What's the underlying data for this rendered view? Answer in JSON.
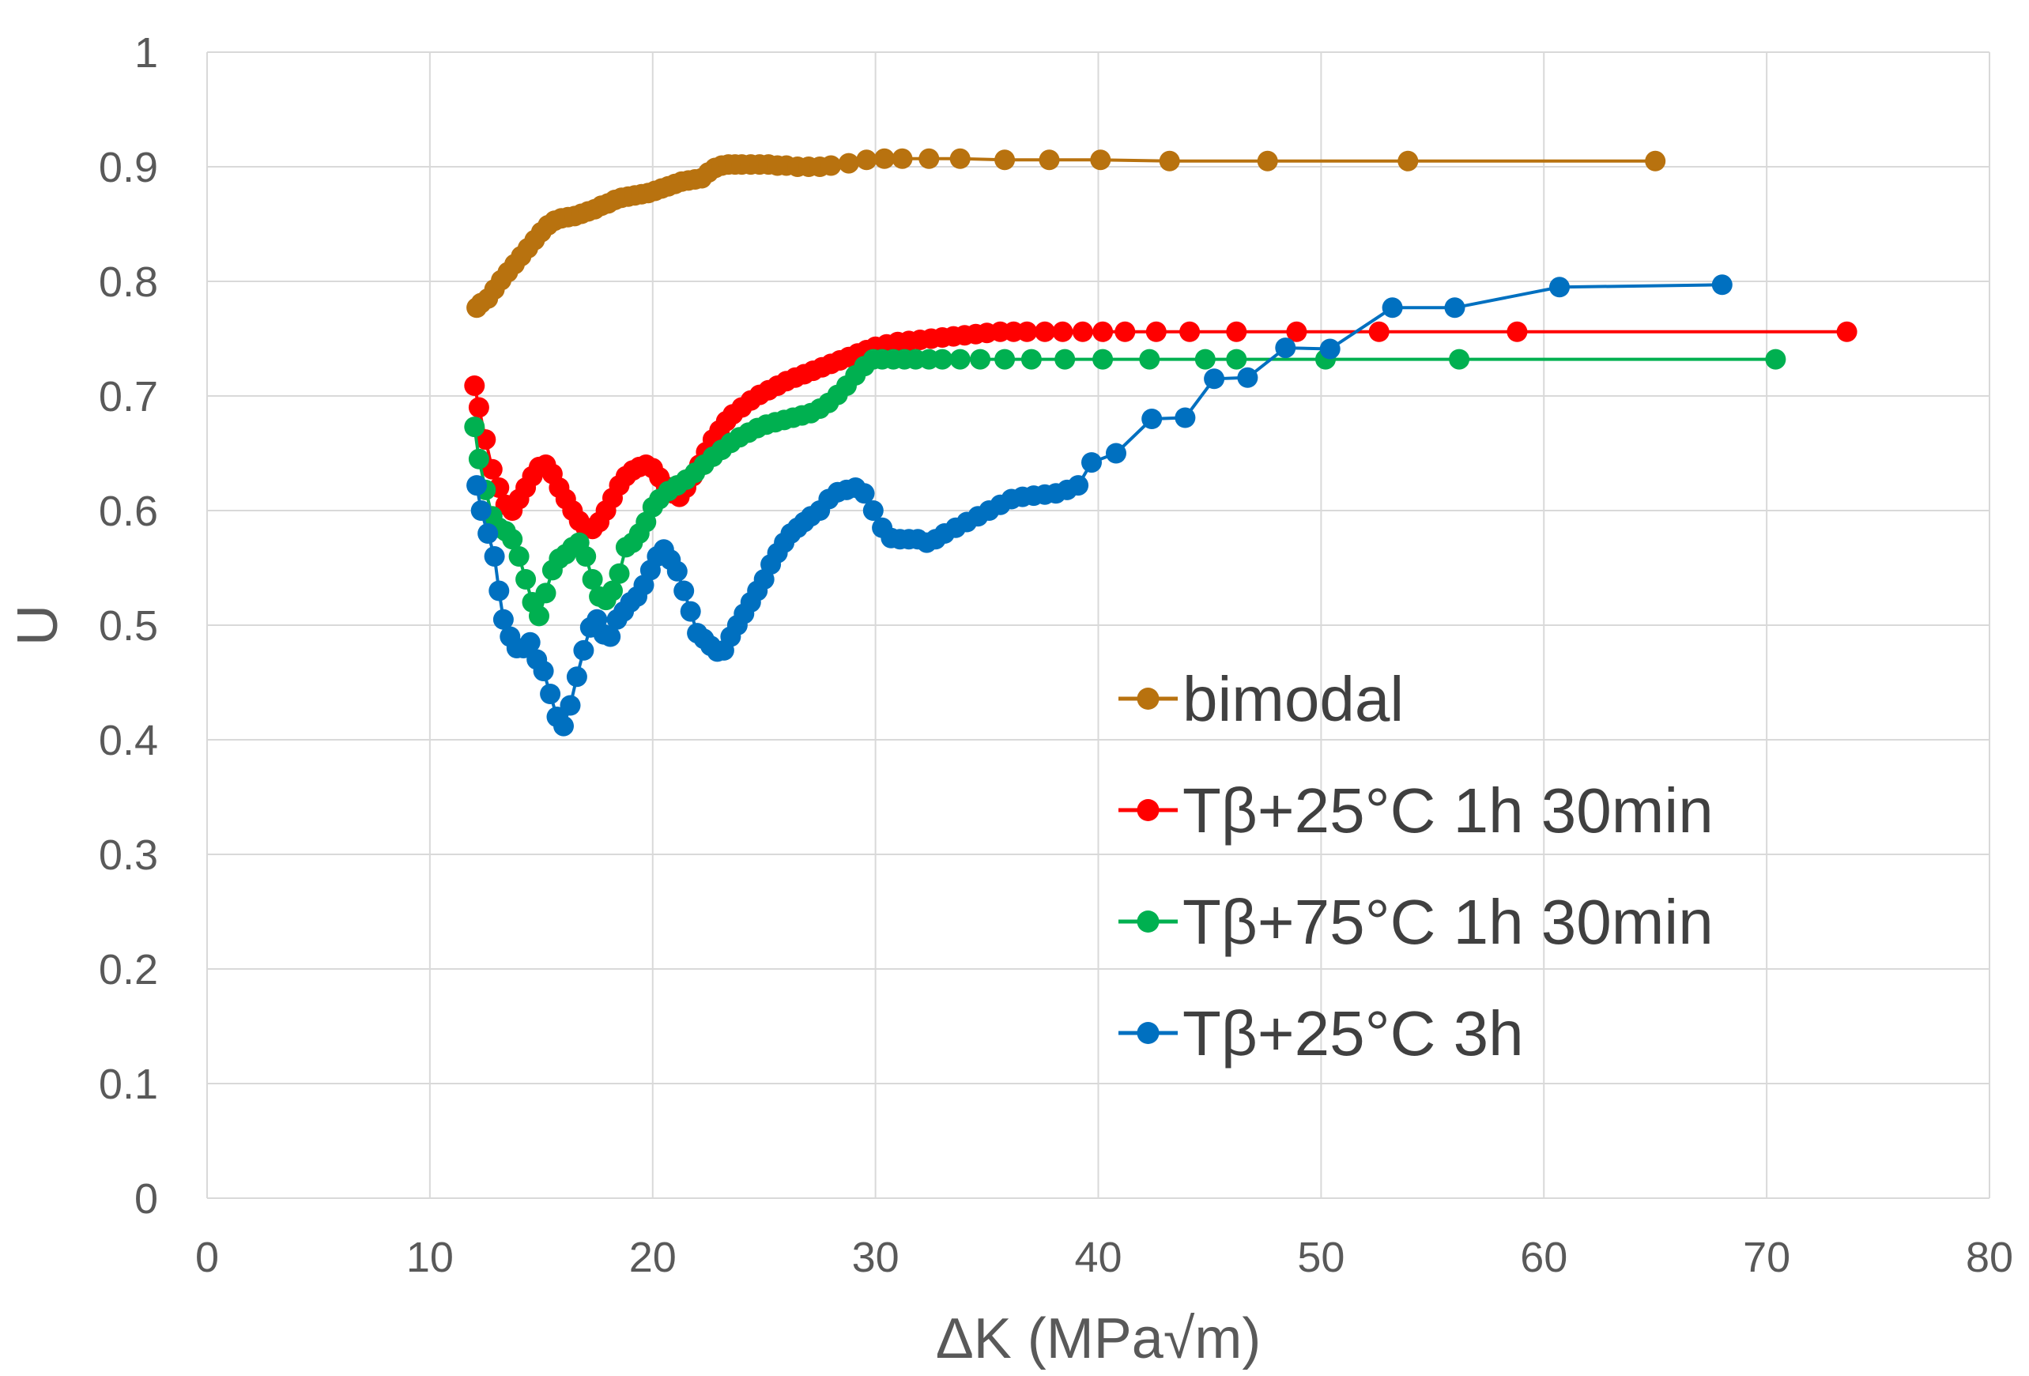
{
  "chart_data": {
    "type": "line",
    "title": "",
    "xlabel": "ΔK (MPa√m)",
    "ylabel": "U",
    "xlim": [
      0,
      80
    ],
    "ylim": [
      0,
      1
    ],
    "xticks": [
      0,
      10,
      20,
      30,
      40,
      50,
      60,
      70,
      80
    ],
    "xtick_labels": [
      "0",
      "10",
      "20",
      "30",
      "40",
      "50",
      "60",
      "70",
      "80"
    ],
    "yticks": [
      0,
      0.1,
      0.2,
      0.3,
      0.4,
      0.5,
      0.6,
      0.7,
      0.8,
      0.9,
      1
    ],
    "ytick_labels": [
      "0",
      "0.1",
      "0.2",
      "0.3",
      "0.4",
      "0.5",
      "0.6",
      "0.7",
      "0.8",
      "0.9",
      "1"
    ],
    "grid": true,
    "legend_position": "lower-right",
    "series": [
      {
        "name": "bimodal",
        "color": "#b8720f",
        "marker": "circle",
        "x": [
          12.1,
          12.3,
          12.6,
          12.9,
          13.2,
          13.5,
          13.8,
          14.1,
          14.4,
          14.7,
          15.0,
          15.3,
          15.6,
          15.9,
          16.2,
          16.5,
          16.8,
          17.1,
          17.4,
          17.7,
          18.0,
          18.3,
          18.6,
          18.9,
          19.2,
          19.5,
          19.8,
          20.1,
          20.4,
          20.7,
          21.0,
          21.3,
          21.6,
          21.9,
          22.2,
          22.5,
          22.8,
          23.1,
          23.4,
          23.7,
          24.0,
          24.4,
          24.8,
          25.2,
          25.6,
          26.0,
          26.5,
          27.0,
          27.5,
          28.0,
          28.8,
          29.6,
          30.4,
          31.2,
          32.4,
          33.8,
          35.8,
          37.8,
          40.1,
          43.2,
          47.6,
          53.9,
          65.0
        ],
        "y": [
          0.777,
          0.781,
          0.785,
          0.793,
          0.801,
          0.808,
          0.815,
          0.822,
          0.829,
          0.836,
          0.843,
          0.849,
          0.853,
          0.855,
          0.856,
          0.857,
          0.859,
          0.861,
          0.863,
          0.866,
          0.868,
          0.871,
          0.873,
          0.874,
          0.875,
          0.876,
          0.877,
          0.879,
          0.881,
          0.883,
          0.885,
          0.887,
          0.888,
          0.889,
          0.89,
          0.895,
          0.899,
          0.901,
          0.902,
          0.902,
          0.902,
          0.902,
          0.902,
          0.902,
          0.901,
          0.901,
          0.9,
          0.9,
          0.9,
          0.901,
          0.903,
          0.906,
          0.907,
          0.907,
          0.907,
          0.907,
          0.906,
          0.906,
          0.906,
          0.905,
          0.905,
          0.905,
          0.905
        ]
      },
      {
        "name": "Tβ+25°C 1h 30min",
        "color": "#ff0000",
        "marker": "circle",
        "x": [
          12.0,
          12.2,
          12.5,
          12.8,
          13.1,
          13.4,
          13.7,
          14.0,
          14.3,
          14.6,
          14.9,
          15.2,
          15.5,
          15.8,
          16.1,
          16.4,
          16.7,
          17.0,
          17.3,
          17.6,
          17.9,
          18.2,
          18.5,
          18.8,
          19.1,
          19.4,
          19.7,
          20.0,
          20.3,
          20.6,
          20.9,
          21.2,
          21.5,
          21.8,
          22.1,
          22.4,
          22.7,
          23.0,
          23.3,
          23.6,
          24.0,
          24.4,
          24.8,
          25.2,
          25.6,
          26.0,
          26.4,
          26.8,
          27.2,
          27.6,
          28.0,
          28.4,
          28.8,
          29.2,
          29.6,
          30.0,
          30.5,
          31.0,
          31.5,
          32.0,
          32.5,
          33.0,
          33.5,
          34.0,
          34.5,
          35.0,
          35.6,
          36.2,
          36.8,
          37.6,
          38.4,
          39.3,
          40.2,
          41.2,
          42.6,
          44.1,
          46.2,
          48.9,
          52.6,
          58.8,
          73.6
        ],
        "y": [
          0.709,
          0.69,
          0.662,
          0.636,
          0.62,
          0.605,
          0.6,
          0.61,
          0.62,
          0.63,
          0.638,
          0.64,
          0.632,
          0.62,
          0.61,
          0.6,
          0.591,
          0.585,
          0.584,
          0.59,
          0.6,
          0.611,
          0.622,
          0.63,
          0.635,
          0.638,
          0.64,
          0.637,
          0.629,
          0.621,
          0.615,
          0.612,
          0.62,
          0.63,
          0.64,
          0.651,
          0.662,
          0.67,
          0.678,
          0.684,
          0.69,
          0.696,
          0.701,
          0.705,
          0.709,
          0.713,
          0.716,
          0.719,
          0.722,
          0.725,
          0.728,
          0.731,
          0.734,
          0.737,
          0.74,
          0.743,
          0.745,
          0.747,
          0.748,
          0.749,
          0.75,
          0.751,
          0.752,
          0.753,
          0.754,
          0.755,
          0.756,
          0.756,
          0.756,
          0.756,
          0.756,
          0.756,
          0.756,
          0.756,
          0.756,
          0.756,
          0.756,
          0.756,
          0.756,
          0.756,
          0.756
        ]
      },
      {
        "name": "Tβ+75°C 1h 30min",
        "color": "#00b050",
        "marker": "circle",
        "x": [
          12.0,
          12.2,
          12.5,
          12.8,
          13.1,
          13.4,
          13.7,
          14.0,
          14.3,
          14.6,
          14.9,
          15.2,
          15.5,
          15.8,
          16.1,
          16.4,
          16.7,
          17.0,
          17.3,
          17.6,
          17.9,
          18.2,
          18.5,
          18.8,
          19.1,
          19.4,
          19.7,
          20.0,
          20.3,
          20.7,
          21.1,
          21.5,
          21.9,
          22.3,
          22.7,
          23.1,
          23.5,
          23.9,
          24.3,
          24.7,
          25.1,
          25.5,
          25.9,
          26.3,
          26.7,
          27.1,
          27.5,
          27.9,
          28.3,
          28.7,
          29.1,
          29.5,
          29.9,
          30.3,
          30.8,
          31.3,
          31.8,
          32.4,
          33.0,
          33.8,
          34.7,
          35.8,
          37.0,
          38.5,
          40.2,
          42.3,
          44.8,
          46.2,
          50.2,
          56.2,
          70.4
        ],
        "y": [
          0.673,
          0.645,
          0.618,
          0.595,
          0.585,
          0.582,
          0.575,
          0.56,
          0.54,
          0.52,
          0.508,
          0.528,
          0.548,
          0.558,
          0.562,
          0.568,
          0.572,
          0.56,
          0.54,
          0.525,
          0.522,
          0.53,
          0.545,
          0.568,
          0.572,
          0.58,
          0.59,
          0.603,
          0.61,
          0.617,
          0.622,
          0.627,
          0.633,
          0.64,
          0.647,
          0.653,
          0.659,
          0.664,
          0.668,
          0.672,
          0.675,
          0.677,
          0.679,
          0.681,
          0.683,
          0.685,
          0.689,
          0.694,
          0.701,
          0.709,
          0.718,
          0.726,
          0.732,
          0.732,
          0.732,
          0.732,
          0.732,
          0.732,
          0.732,
          0.732,
          0.732,
          0.732,
          0.732,
          0.732,
          0.732,
          0.732,
          0.732,
          0.732,
          0.732,
          0.732,
          0.732
        ]
      },
      {
        "name": "Tβ+25°C 3h",
        "color": "#0070c0",
        "marker": "circle",
        "x": [
          12.1,
          12.3,
          12.6,
          12.9,
          13.1,
          13.3,
          13.6,
          13.9,
          14.2,
          14.5,
          14.8,
          15.1,
          15.4,
          15.7,
          16.0,
          16.3,
          16.6,
          16.9,
          17.2,
          17.5,
          17.8,
          18.1,
          18.4,
          18.7,
          19.0,
          19.3,
          19.6,
          19.9,
          20.2,
          20.5,
          20.8,
          21.1,
          21.4,
          21.7,
          22.0,
          22.3,
          22.6,
          22.9,
          23.2,
          23.5,
          23.8,
          24.1,
          24.4,
          24.7,
          25.0,
          25.3,
          25.6,
          25.9,
          26.2,
          26.5,
          26.8,
          27.1,
          27.5,
          27.9,
          28.3,
          28.7,
          29.1,
          29.5,
          29.9,
          30.3,
          30.7,
          31.1,
          31.5,
          31.9,
          32.3,
          32.7,
          33.1,
          33.6,
          34.1,
          34.6,
          35.1,
          35.6,
          36.1,
          36.6,
          37.1,
          37.6,
          38.1,
          38.6,
          39.1,
          39.7,
          40.8,
          42.4,
          43.9,
          45.2,
          46.7,
          48.4,
          50.4,
          53.2,
          56.0,
          60.7,
          68.0
        ],
        "y": [
          0.622,
          0.6,
          0.58,
          0.56,
          0.53,
          0.505,
          0.49,
          0.48,
          0.48,
          0.485,
          0.47,
          0.46,
          0.44,
          0.42,
          0.412,
          0.43,
          0.455,
          0.478,
          0.498,
          0.505,
          0.492,
          0.49,
          0.505,
          0.512,
          0.52,
          0.525,
          0.535,
          0.548,
          0.56,
          0.566,
          0.557,
          0.547,
          0.53,
          0.512,
          0.493,
          0.488,
          0.482,
          0.477,
          0.478,
          0.49,
          0.5,
          0.51,
          0.52,
          0.53,
          0.54,
          0.553,
          0.563,
          0.572,
          0.58,
          0.585,
          0.59,
          0.595,
          0.6,
          0.61,
          0.616,
          0.618,
          0.62,
          0.615,
          0.6,
          0.585,
          0.576,
          0.575,
          0.575,
          0.575,
          0.572,
          0.575,
          0.58,
          0.585,
          0.59,
          0.595,
          0.6,
          0.605,
          0.61,
          0.612,
          0.613,
          0.614,
          0.615,
          0.618,
          0.622,
          0.642,
          0.65,
          0.68,
          0.681,
          0.715,
          0.716,
          0.742,
          0.741,
          0.777,
          0.777,
          0.795,
          0.797
        ]
      }
    ]
  }
}
